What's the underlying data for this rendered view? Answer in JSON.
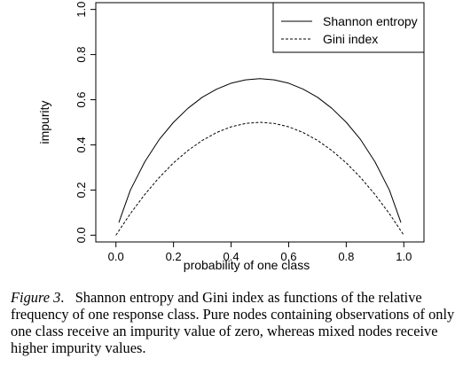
{
  "chart_data": {
    "type": "line",
    "xlabel": "probability of one class",
    "ylabel": "impurity",
    "xlim": [
      -0.07,
      1.07
    ],
    "ylim": [
      -0.03,
      1.03
    ],
    "x_ticks": [
      "0.0",
      "0.2",
      "0.4",
      "0.6",
      "0.8",
      "1.0"
    ],
    "y_ticks": [
      "0.0",
      "0.2",
      "0.4",
      "0.6",
      "0.8",
      "1.0"
    ],
    "legend_position": "top-right",
    "series": [
      {
        "name": "Shannon entropy",
        "style": "solid",
        "x": [
          0.01,
          0.05,
          0.1,
          0.15,
          0.2,
          0.25,
          0.3,
          0.35,
          0.4,
          0.45,
          0.5,
          0.55,
          0.6,
          0.65,
          0.7,
          0.75,
          0.8,
          0.85,
          0.9,
          0.95,
          0.99
        ],
        "y": [
          0.056,
          0.199,
          0.325,
          0.423,
          0.5,
          0.562,
          0.611,
          0.647,
          0.673,
          0.688,
          0.693,
          0.688,
          0.673,
          0.647,
          0.611,
          0.562,
          0.5,
          0.423,
          0.325,
          0.199,
          0.056
        ]
      },
      {
        "name": "Gini index",
        "style": "dashed",
        "x": [
          0.0,
          0.05,
          0.1,
          0.15,
          0.2,
          0.25,
          0.3,
          0.35,
          0.4,
          0.45,
          0.5,
          0.55,
          0.6,
          0.65,
          0.7,
          0.75,
          0.8,
          0.85,
          0.9,
          0.95,
          1.0
        ],
        "y": [
          0.0,
          0.095,
          0.18,
          0.255,
          0.32,
          0.375,
          0.42,
          0.455,
          0.48,
          0.495,
          0.5,
          0.495,
          0.48,
          0.455,
          0.42,
          0.375,
          0.32,
          0.255,
          0.18,
          0.095,
          0.0
        ]
      }
    ]
  },
  "caption": {
    "label": "Figure 3",
    "text": "Shannon entropy and Gini index as functions of the relative frequency of one response class. Pure nodes containing observations of only one class receive an impurity value of zero, whereas mixed nodes receive higher impurity values."
  }
}
